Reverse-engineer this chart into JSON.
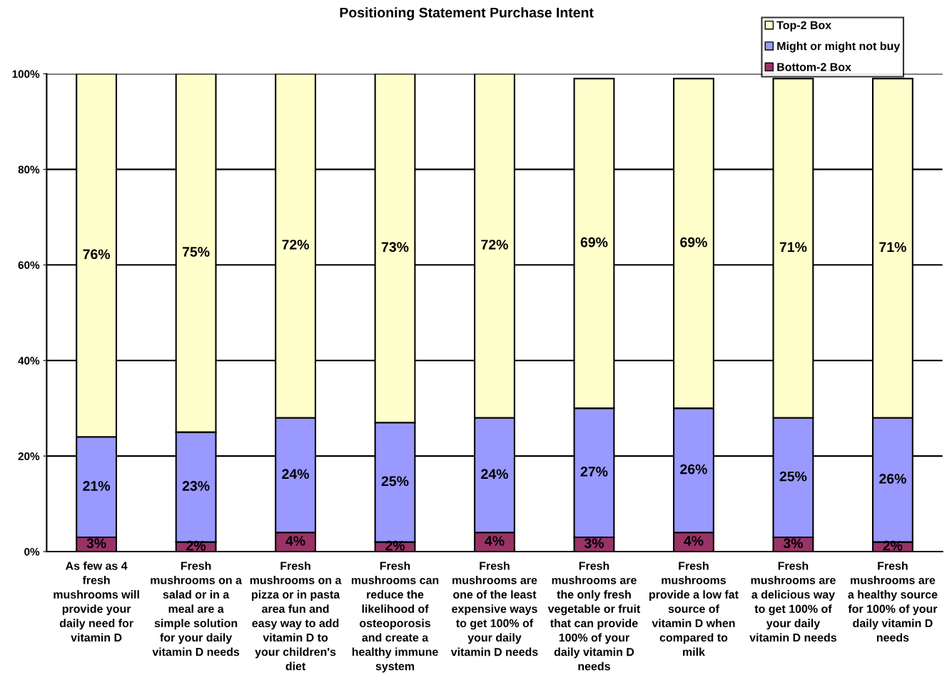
{
  "chart_data": {
    "type": "bar",
    "title": "Positioning Statement Purchase Intent",
    "stacked": true,
    "categories": [
      "As few as 4\nfresh\nmushrooms will\nprovide your\ndaily need for\nvitamin D",
      "Fresh\nmushrooms on a\nsalad or in a\nmeal are a\nsimple solution\nfor your daily\nvitamin D needs",
      "Fresh\nmushrooms on a\npizza or in pasta\narea fun and\neasy way to add\nvitamin D to\nyour children's\ndiet",
      "Fresh\nmushrooms can\nreduce the\nlikelihood of\nosteoporosis\nand create a\nhealthy immune\nsystem",
      "Fresh\nmushrooms are\none of the least\nexpensive ways\nto get 100% of\nyour daily\nvitamin D needs",
      "Fresh\nmushrooms are\nthe only fresh\nvegetable or fruit\nthat can provide\n100% of your\ndaily vitamin D\nneeds",
      "Fresh\nmushrooms\nprovide a low fat\nsource of\nvitamin D when\ncompared to\nmilk",
      "Fresh\nmushrooms are\na delicious way\nto get 100% of\nyour daily\nvitamin D needs",
      "Fresh\nmushrooms are\na healthy source\nfor 100% of your\ndaily vitamin D\nneeds"
    ],
    "series": [
      {
        "name": "Bottom-2 Box",
        "color": "#993366",
        "values": [
          3,
          2,
          4,
          2,
          4,
          3,
          4,
          3,
          2
        ],
        "value_labels": [
          "3%",
          "2%",
          "4%",
          "2%",
          "4%",
          "3%",
          "4%",
          "3%",
          "2%"
        ]
      },
      {
        "name": "Might or might not buy",
        "color": "#9999ff",
        "values": [
          21,
          23,
          24,
          25,
          24,
          27,
          26,
          25,
          26
        ],
        "value_labels": [
          "21%",
          "23%",
          "24%",
          "25%",
          "24%",
          "27%",
          "26%",
          "25%",
          "26%"
        ]
      },
      {
        "name": "Top-2 Box",
        "color": "#ffffcc",
        "values": [
          76,
          75,
          72,
          73,
          72,
          69,
          69,
          71,
          71
        ],
        "value_labels": [
          "76%",
          "75%",
          "72%",
          "73%",
          "72%",
          "69%",
          "69%",
          "71%",
          "71%"
        ]
      }
    ],
    "ylim": [
      0,
      100
    ],
    "yticks": [
      {
        "value": 0,
        "label": "0%"
      },
      {
        "value": 20,
        "label": "20%"
      },
      {
        "value": 40,
        "label": "40%"
      },
      {
        "value": 60,
        "label": "60%"
      },
      {
        "value": 80,
        "label": "80%"
      },
      {
        "value": 100,
        "label": "100%"
      }
    ],
    "grid": "y",
    "legend": "top right"
  }
}
